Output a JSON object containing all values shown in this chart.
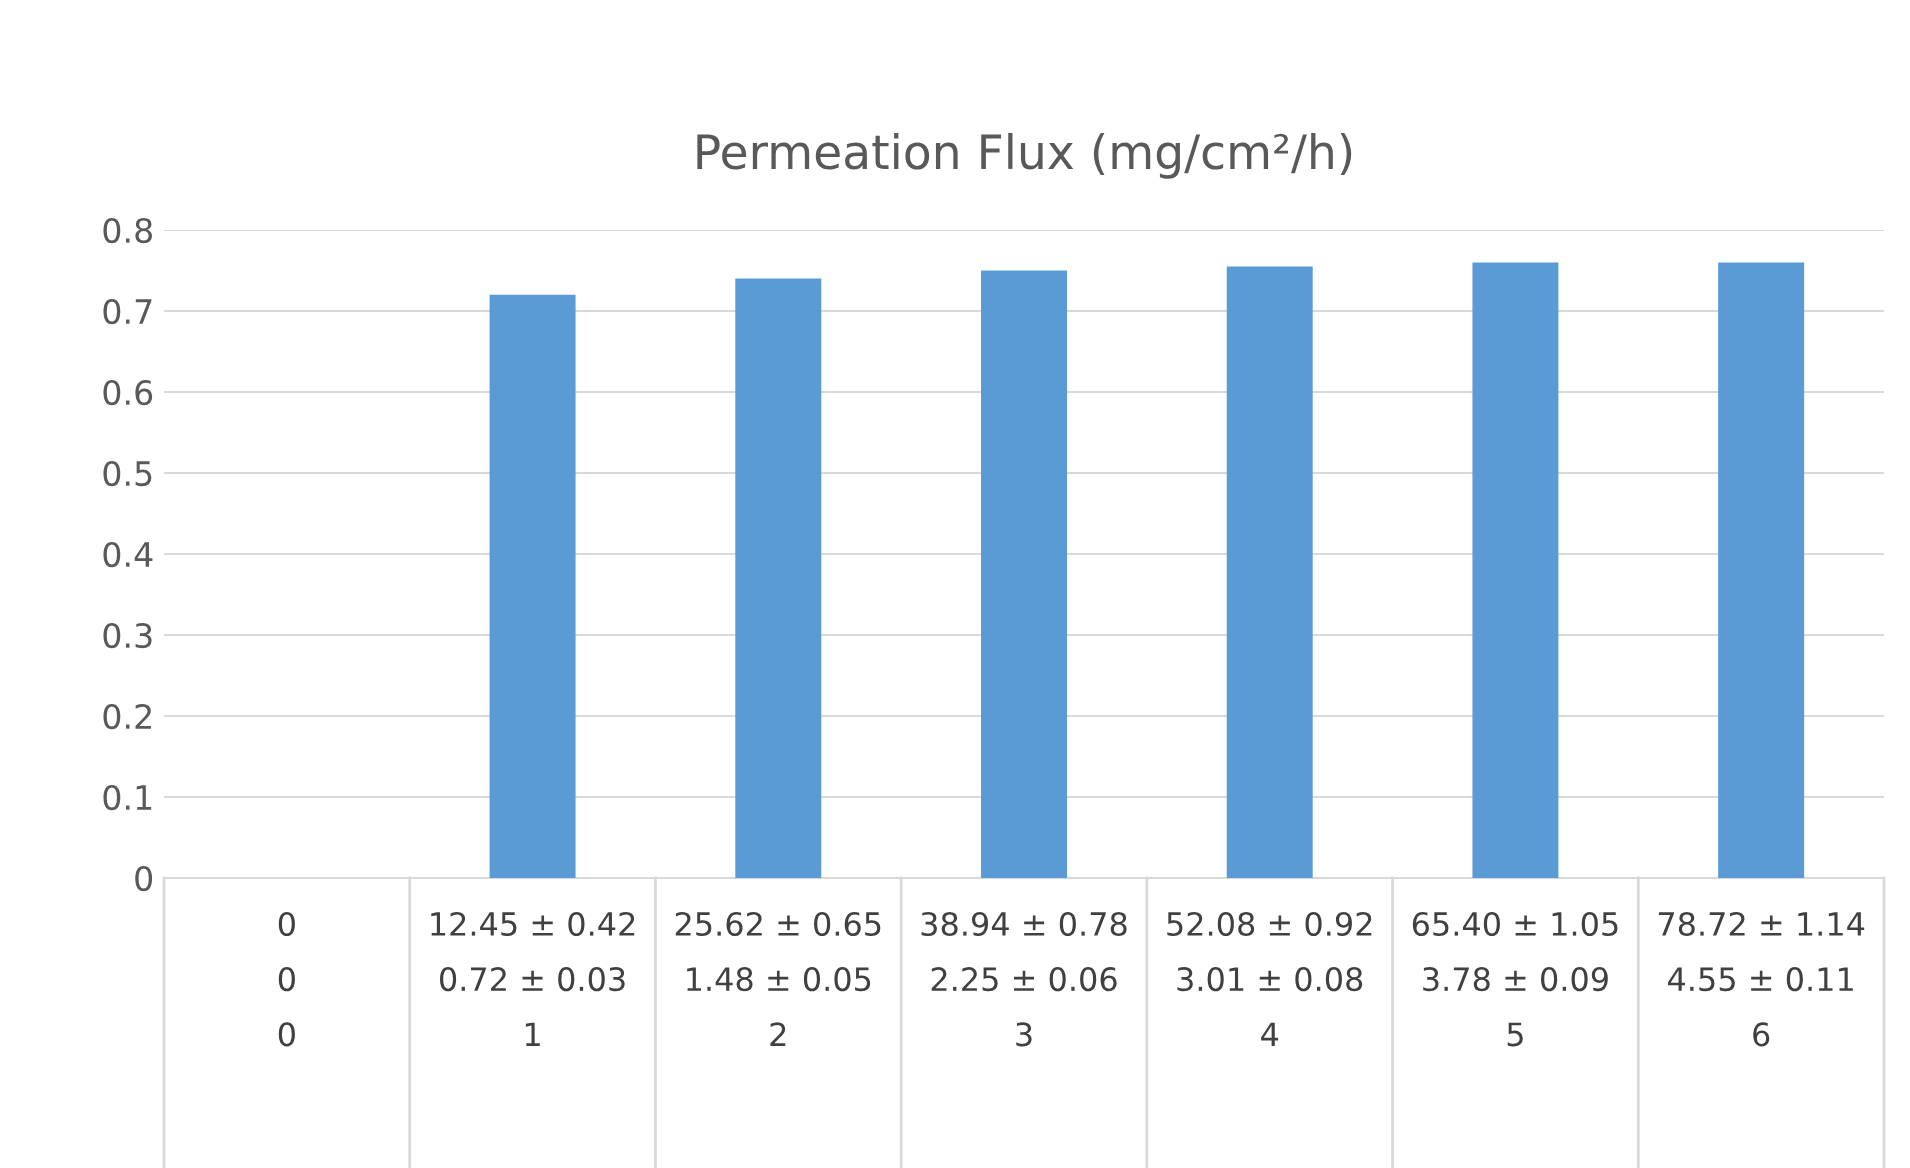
{
  "chart_data": {
    "type": "bar",
    "title": "Permeation Flux (mg/cm²/h)",
    "categories": [
      "0\n0\n0",
      "12.45 ± 0.42\n0.72 ± 0.03\n1",
      "25.62 ± 0.65\n1.48 ± 0.05\n2",
      "38.94 ± 0.78\n2.25 ± 0.06\n3",
      "52.08 ± 0.92\n3.01 ± 0.08\n4",
      "65.40 ± 1.05\n3.78 ± 0.09\n5",
      "78.72 ± 1.14\n4.55 ± 0.11\n6"
    ],
    "values": [
      0,
      0.72,
      0.74,
      0.75,
      0.755,
      0.76,
      0.76
    ],
    "color": "#5b9bd5",
    "ylim": [
      0,
      0.8
    ],
    "yticks": [
      0,
      0.1,
      0.2,
      0.3,
      0.4,
      0.5,
      0.6,
      0.7,
      0.8
    ],
    "grid": "y",
    "legend": false
  }
}
